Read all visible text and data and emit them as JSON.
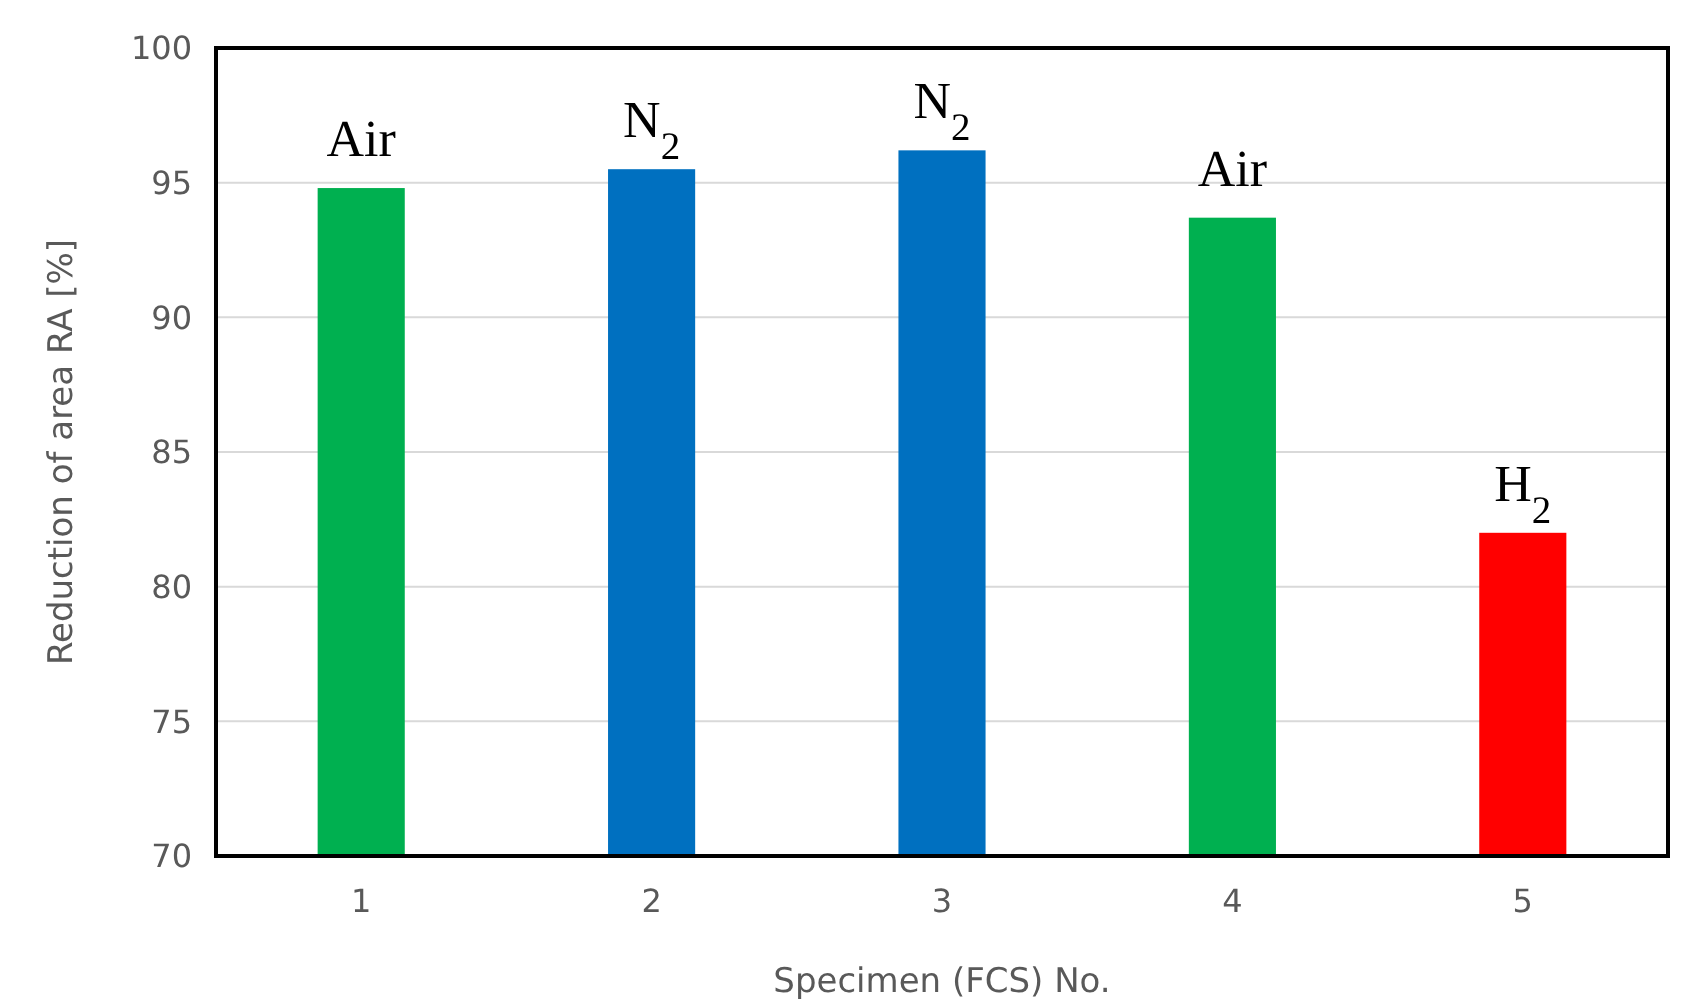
{
  "chart_data": {
    "type": "bar",
    "xlabel": "Specimen (FCS) No.",
    "ylabel": "Reduction of area RA [%]",
    "categories": [
      "1",
      "2",
      "3",
      "4",
      "5"
    ],
    "values": [
      94.8,
      95.5,
      96.2,
      93.7,
      82.0
    ],
    "colors": [
      "#00b050",
      "#0070c0",
      "#0070c0",
      "#00b050",
      "#ff0000"
    ],
    "ylim": [
      70,
      100
    ],
    "yticks": [
      70,
      75,
      80,
      85,
      90,
      95,
      100
    ],
    "grid": "y",
    "annotations": [
      {
        "text": "Air",
        "x": "1",
        "y": 94.8
      },
      {
        "text": "N$_{2}$",
        "x": "2",
        "y": 95.5
      },
      {
        "text": "N$_{2}$",
        "x": "3",
        "y": 96.2
      },
      {
        "text": "Air",
        "x": "4",
        "y": 93.7
      },
      {
        "text": "H$_{2}$",
        "x": "5",
        "y": 82.0
      }
    ]
  }
}
